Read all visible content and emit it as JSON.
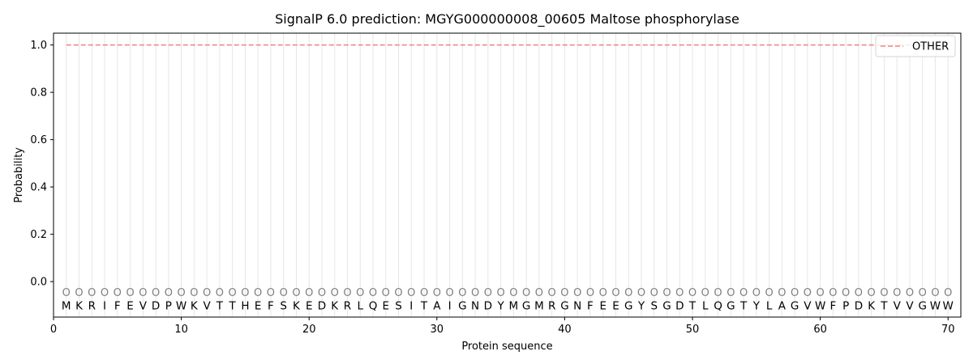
{
  "chart_data": {
    "type": "line",
    "title": "SignalP 6.0 prediction: MGYG000000008_00605 Maltose phosphorylase",
    "xlabel": "Protein sequence",
    "ylabel": "Probability",
    "xlim": [
      0,
      71
    ],
    "ylim": [
      -0.15,
      1.05
    ],
    "xticks": [
      0,
      10,
      20,
      30,
      40,
      50,
      60,
      70
    ],
    "yticks": [
      0.0,
      0.2,
      0.4,
      0.6,
      0.8,
      1.0
    ],
    "xtick_labels": [
      "0",
      "10",
      "20",
      "30",
      "40",
      "50",
      "60",
      "70"
    ],
    "ytick_labels": [
      "0.0",
      "0.2",
      "0.4",
      "0.6",
      "0.8",
      "1.0"
    ],
    "sequence": [
      "M",
      "K",
      "R",
      "I",
      "F",
      "E",
      "V",
      "D",
      "P",
      "W",
      "K",
      "V",
      "T",
      "T",
      "H",
      "E",
      "F",
      "S",
      "K",
      "E",
      "D",
      "K",
      "R",
      "L",
      "Q",
      "E",
      "S",
      "I",
      "T",
      "A",
      "I",
      "G",
      "N",
      "D",
      "Y",
      "M",
      "G",
      "M",
      "R",
      "G",
      "N",
      "F",
      "E",
      "E",
      "G",
      "Y",
      "S",
      "G",
      "D",
      "T",
      "L",
      "Q",
      "G",
      "T",
      "Y",
      "L",
      "A",
      "G",
      "V",
      "W",
      "F",
      "P",
      "D",
      "K",
      "T",
      "V",
      "V",
      "G",
      "W",
      "W"
    ],
    "marker_label": "O",
    "marker_y": -0.045,
    "residue_label_y": -0.1,
    "series": [
      {
        "name": "OTHER",
        "color": "#f08080",
        "style": "dashed",
        "x_start": 1,
        "x_end": 70,
        "y": 1.0
      }
    ],
    "legend_position": "top-right",
    "grid": "vertical lines at each residue"
  }
}
